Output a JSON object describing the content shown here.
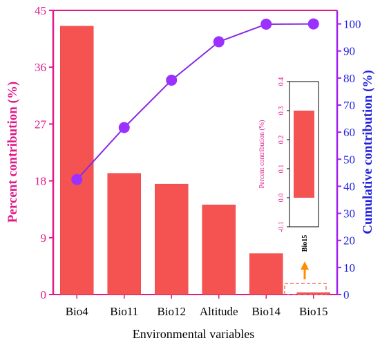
{
  "chart_data": {
    "type": "bar",
    "categories": [
      "Bio4",
      "Bio11",
      "Bio12",
      "Altitude",
      "Bio14",
      "Bio15"
    ],
    "series": [
      {
        "type": "bar",
        "axis": "left",
        "values": [
          42.5,
          19.2,
          17.5,
          14.2,
          6.5,
          0.3
        ]
      },
      {
        "type": "line",
        "axis": "right",
        "values": [
          42.5,
          61.7,
          79.2,
          93.4,
          99.9,
          100.0
        ]
      }
    ],
    "xlabel": "Environmental variables",
    "ylabel_left": "Percent contribution (%)",
    "ylabel_right": "Cumulative contribution (%)",
    "ylim_left": [
      0,
      45
    ],
    "yticks_left": [
      "0",
      "9",
      "18",
      "27",
      "36",
      "45"
    ],
    "ylim_right": [
      0,
      105
    ],
    "yticks_right": [
      "0",
      "10",
      "20",
      "30",
      "40",
      "50",
      "60",
      "70",
      "80",
      "90",
      "100"
    ],
    "inset": {
      "category": "Bio15",
      "value": 0.3,
      "ylim": [
        -0.1,
        0.4
      ],
      "yticks": [
        "-0.1",
        "0.0",
        "0.1",
        "0.2",
        "0.3",
        "0.4"
      ],
      "ylabel": "Percent contribution (%)"
    },
    "colors": {
      "bar": "#f55252",
      "line": "#8a2be2",
      "marker": "#9b30ff",
      "left_axis": "#e0198a",
      "right_axis": "#2222dd",
      "right_spine": "#a020f0",
      "annotation": "#ff8c00"
    }
  }
}
